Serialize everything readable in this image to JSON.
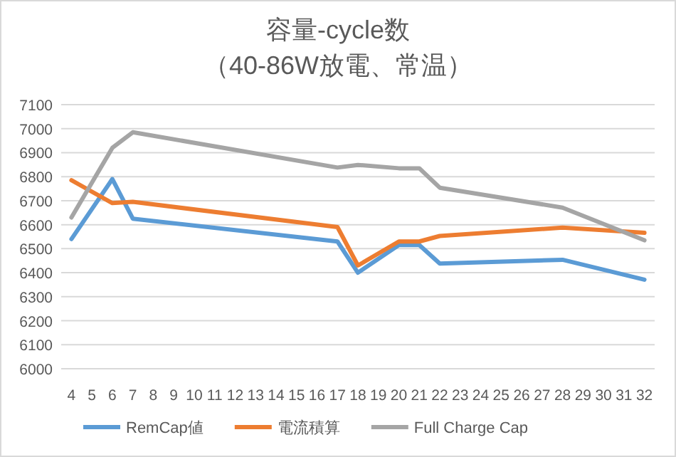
{
  "chart_data": {
    "type": "line",
    "title": "容量-cycle数",
    "subtitle": "（40-86W放電、常温）",
    "x": [
      4,
      6,
      7,
      17,
      18,
      20,
      21,
      22,
      28,
      32
    ],
    "xlim": [
      3.5,
      32.5
    ],
    "xticks": [
      4,
      5,
      6,
      7,
      8,
      9,
      10,
      11,
      12,
      13,
      14,
      15,
      16,
      17,
      18,
      19,
      20,
      21,
      22,
      23,
      24,
      25,
      26,
      27,
      28,
      29,
      30,
      31,
      32
    ],
    "ylim": [
      6000,
      7100
    ],
    "yticks": [
      6000,
      6100,
      6200,
      6300,
      6400,
      6500,
      6600,
      6700,
      6800,
      6900,
      7000,
      7100
    ],
    "grid": "y",
    "legend": "bottom",
    "series": [
      {
        "name": "RemCap値",
        "color": "#5b9bd5",
        "values": [
          6540,
          6790,
          6625,
          6530,
          6400,
          6515,
          6515,
          6438,
          6454,
          6371
        ]
      },
      {
        "name": "電流積算",
        "color": "#ed7d31",
        "values": [
          6785,
          6690,
          6695,
          6590,
          6430,
          6530,
          6530,
          6553,
          6588,
          6566
        ]
      },
      {
        "name": "Full Charge Cap",
        "color": "#a5a5a5",
        "values": [
          6630,
          6920,
          6985,
          6838,
          6849,
          6835,
          6835,
          6754,
          6671,
          6535
        ]
      }
    ]
  }
}
